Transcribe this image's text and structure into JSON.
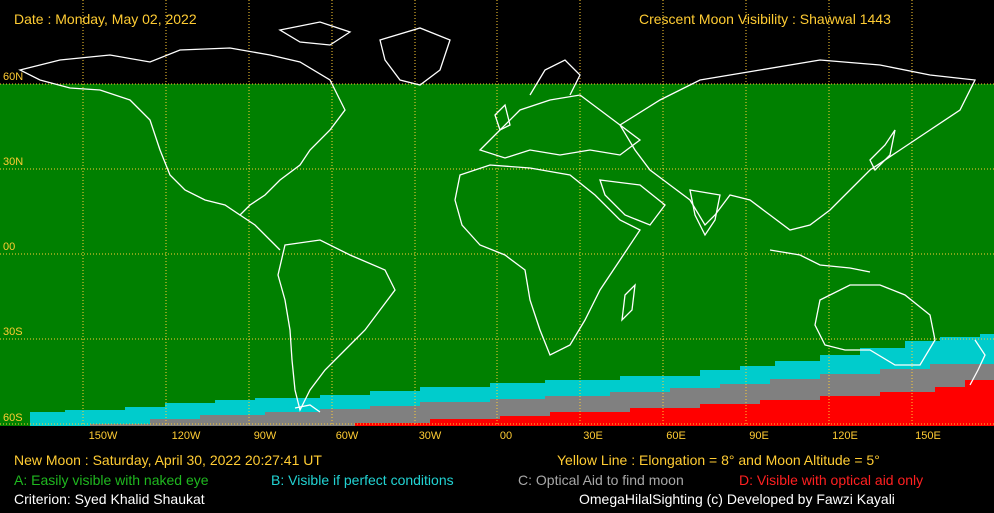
{
  "header": {
    "date": "Date : Monday, May 02, 2022",
    "title": "Crescent Moon Visibility : Shawwal  1443"
  },
  "map": {
    "lat_labels": [
      "60N",
      "30N",
      "00",
      "30S",
      "60S"
    ],
    "lon_labels": [
      "150W",
      "120W",
      "90W",
      "60W",
      "30W",
      "00",
      "30E",
      "60E",
      "90E",
      "120E",
      "150E"
    ],
    "colors": {
      "not_visible": "#008000",
      "A": "#008000",
      "B": "#00cccc",
      "C": "#808080",
      "D": "#ff0000",
      "grid": "#ffcc33",
      "coast": "#ffffff"
    }
  },
  "footer": {
    "new_moon": "New Moon : Saturday, April 30, 2022  20:27:41  UT",
    "yellow_line": "Yellow Line : Elongation = 8° and Moon Altitude = 5°",
    "legend_a": "A: Easily visible with naked eye",
    "legend_b": "B: Visible if perfect conditions",
    "legend_c": "C: Optical Aid to find moon",
    "legend_d": "D: Visible with optical aid only",
    "criterion": "Criterion: Syed Khalid Shaukat",
    "credit": "OmegaHilalSighting  (c)  Developed by Fawzi Kayali"
  }
}
